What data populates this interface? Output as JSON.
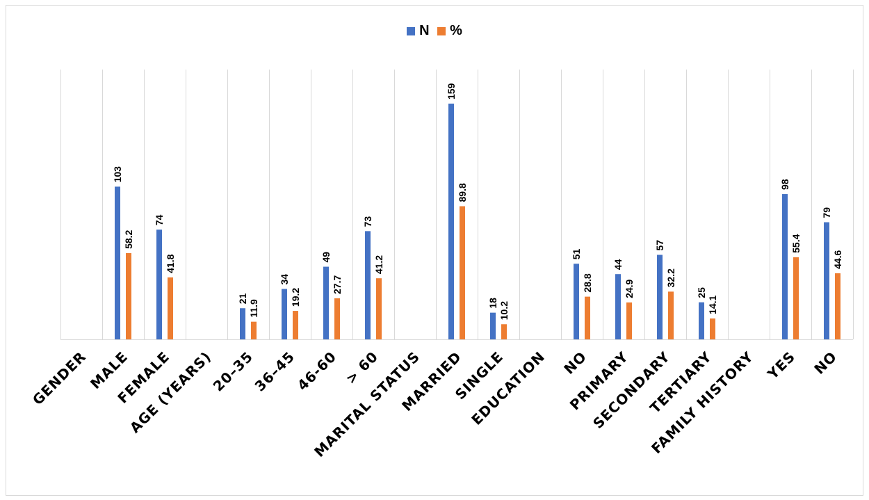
{
  "chart_data": {
    "type": "bar",
    "categories": [
      "GENDER",
      "MALE",
      "FEMALE",
      "AGE (YEARS)",
      "20–35",
      "36–45",
      "46-60",
      "> 60",
      "MARITAL STATUS",
      "MARRIED",
      "SINGLE",
      "EDUCATION",
      "NO",
      "PRIMARY",
      "SECONDARY",
      "TERTIARY",
      "FAMILY HISTORY",
      "YES",
      "NO"
    ],
    "series": [
      {
        "name": "N",
        "color": "#4472c4",
        "values": [
          null,
          103,
          74,
          null,
          21,
          34,
          49,
          73,
          null,
          159,
          18,
          null,
          51,
          44,
          57,
          25,
          null,
          98,
          79
        ],
        "labels": [
          "",
          "103",
          "74",
          "",
          "21",
          "34",
          "49",
          "73",
          "",
          "159",
          "18",
          "",
          "51",
          "44",
          "57",
          "25",
          "",
          "98",
          "79"
        ]
      },
      {
        "name": "%",
        "color": "#ed7d31",
        "values": [
          null,
          58.2,
          41.8,
          null,
          11.9,
          19.2,
          27.7,
          41.2,
          null,
          89.8,
          10.2,
          null,
          28.8,
          24.9,
          32.2,
          14.1,
          null,
          55.4,
          44.6
        ],
        "labels": [
          "",
          "58.2",
          "41.8",
          "",
          "11.9",
          "19.2",
          "27.7",
          "41.2",
          "",
          "89.8",
          "10.2",
          "",
          "28.8",
          "24.9",
          "32.2",
          "14.1",
          "",
          "55.4",
          "44.6"
        ]
      }
    ],
    "ylim": [
      0,
      180
    ],
    "grid": "vertical",
    "legend": "top-center",
    "title": "",
    "xlabel": "",
    "ylabel": ""
  }
}
